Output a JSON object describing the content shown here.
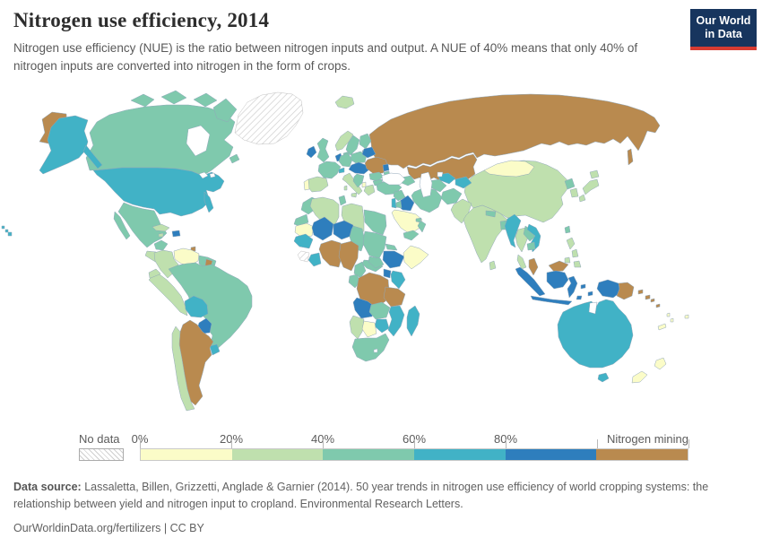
{
  "header": {
    "title": "Nitrogen use efficiency, 2014",
    "subtitle": "Nitrogen use efficiency (NUE) is the ratio between nitrogen inputs and output. A NUE of 40% means that only 40% of nitrogen inputs are converted into nitrogen in the form of crops.",
    "logo_line1": "Our World",
    "logo_line2": "in Data",
    "logo_bg": "#17355e",
    "logo_accent": "#d73c32"
  },
  "legend": {
    "no_data_label": "No data",
    "tick_labels": [
      "0%",
      "20%",
      "40%",
      "60%",
      "80%"
    ],
    "mining_label": "Nitrogen mining"
  },
  "footer": {
    "source_label": "Data source:",
    "source_text": " Lassaletta, Billen, Grizzetti, Anglade & Garnier (2014). 50 year trends in nitrogen use efficiency of world cropping systems: the relationship between yield and nitrogen input to cropland. Environmental Research Letters.",
    "cc_line": "OurWorldinData.org/fertilizers | CC BY"
  },
  "chart_data": {
    "type": "heatmap",
    "subtype": "choropleth-world-map",
    "title": "Nitrogen use efficiency, 2014",
    "unit": "% (share of nitrogen inputs converted into crops)",
    "border_color": "#92a8ba",
    "ocean_color": "#ffffff",
    "bins": [
      {
        "id": "0-20",
        "range": "0-20%",
        "color": "#fbfcc8"
      },
      {
        "id": "20-40",
        "range": "20-40%",
        "color": "#bfe0ae"
      },
      {
        "id": "40-60",
        "range": "40-60%",
        "color": "#7fc9ad"
      },
      {
        "id": "60-80",
        "range": "60-80%",
        "color": "#41b2c6"
      },
      {
        "id": "80-100",
        "range": "80-100%",
        "color": "#2e7ebd"
      },
      {
        "id": "mining",
        "range": "Nitrogen mining",
        "color": "#b98a4f"
      },
      {
        "id": "no-data",
        "range": "No data",
        "color": "hatch"
      }
    ],
    "regions": {
      "russia": "mining",
      "chukotka-russia": "mining",
      "kazakhstan": "mining",
      "canada": "40-60",
      "canadian-arctic-islands": "40-60",
      "alaska-usa": "60-80",
      "greenland": "no-data",
      "iceland": "20-40",
      "usa": "60-80",
      "hawaii-usa": "60-80",
      "mexico": "40-60",
      "central-america": "20-40",
      "cuba": "20-40",
      "jamaica": "20-40",
      "hispaniola": "80-100",
      "trinidad": "mining",
      "venezuela": "0-20",
      "colombia": "20-40",
      "guyana": "40-60",
      "suriname": "mining",
      "ecuador": "20-40",
      "peru": "20-40",
      "brazil": "40-60",
      "bolivia": "60-80",
      "paraguay": "80-100",
      "uruguay": "60-80",
      "argentina": "mining",
      "chile": "20-40",
      "ireland": "80-100",
      "uk": "40-60",
      "norway": "20-40",
      "sweden": "40-60",
      "finland": "40-60",
      "baltics": "40-60",
      "denmark": "40-60",
      "benelux": "80-100",
      "germany": "40-60",
      "france": "40-60",
      "spain": "20-40",
      "portugal": "0-20",
      "switzerland": "60-80",
      "italy": "20-40",
      "czechia-austria-hungary": "80-100",
      "poland": "40-60",
      "belarus": "80-100",
      "ukraine": "mining",
      "moldova": "80-100",
      "crimea": "40-60",
      "romania": "40-60",
      "balkans": "40-60",
      "albania": "0-20",
      "bulgaria": "40-60",
      "greece": "20-40",
      "turkey": "40-60",
      "caucasus": "40-60",
      "syria": "40-60",
      "iraq": "80-100",
      "israel-lebanon": "60-80",
      "jordan": "40-60",
      "saudi-arabia": "0-20",
      "yemen": "40-60",
      "oman": "40-60",
      "uae": "40-60",
      "iran": "40-60",
      "turkmenistan": "40-60",
      "uzbekistan": "60-80",
      "kyrgyzstan-tajikistan": "60-80",
      "afghanistan": "40-60",
      "pakistan": "20-40",
      "india": "20-40",
      "nepal": "40-60",
      "bangladesh": "40-60",
      "sri-lanka": "20-40",
      "china": "20-40",
      "mongolia": "0-20",
      "north-korea": "40-60",
      "south-korea": "20-40",
      "japan": "20-40",
      "taiwan": "40-60",
      "myanmar": "60-80",
      "thailand": "20-40",
      "laos": "40-60",
      "vietnam": "60-80",
      "cambodia": "40-60",
      "malaysia": "mining",
      "indonesia": "80-100",
      "philippines": "20-40",
      "papua-new-guinea": "mining",
      "solomon-islands": "mining",
      "australia": "60-80",
      "tasmania-australia": "60-80",
      "new-zealand": "0-20",
      "new-caledonia": "0-20",
      "vanuatu-fiji": "0-20",
      "morocco": "40-60",
      "western-sahara": "40-60",
      "algeria": "20-40",
      "tunisia": "40-60",
      "libya": "20-40",
      "egypt": "40-60",
      "mauritania": "0-20",
      "mali": "80-100",
      "niger": "80-100",
      "chad": "40-60",
      "sudan": "40-60",
      "eritrea": "40-60",
      "ethiopia": "80-100",
      "somalia": "0-20",
      "senegal-guinea": "60-80",
      "sierra-leone-liberia": "no-data",
      "ivory-coast": "60-80",
      "ghana-burkina": "mining",
      "nigeria": "mining",
      "cameroon": "40-60",
      "central-african-republic": "40-60",
      "south-sudan": "40-60",
      "gabon-congo": "40-60",
      "drc": "mining",
      "uganda": "80-100",
      "kenya": "60-80",
      "tanzania": "mining",
      "angola": "80-100",
      "zambia": "40-60",
      "mozambique-malawi": "60-80",
      "zimbabwe": "60-80",
      "namibia": "20-40",
      "botswana": "0-20",
      "south-africa": "40-60",
      "madagascar": "60-80"
    }
  }
}
